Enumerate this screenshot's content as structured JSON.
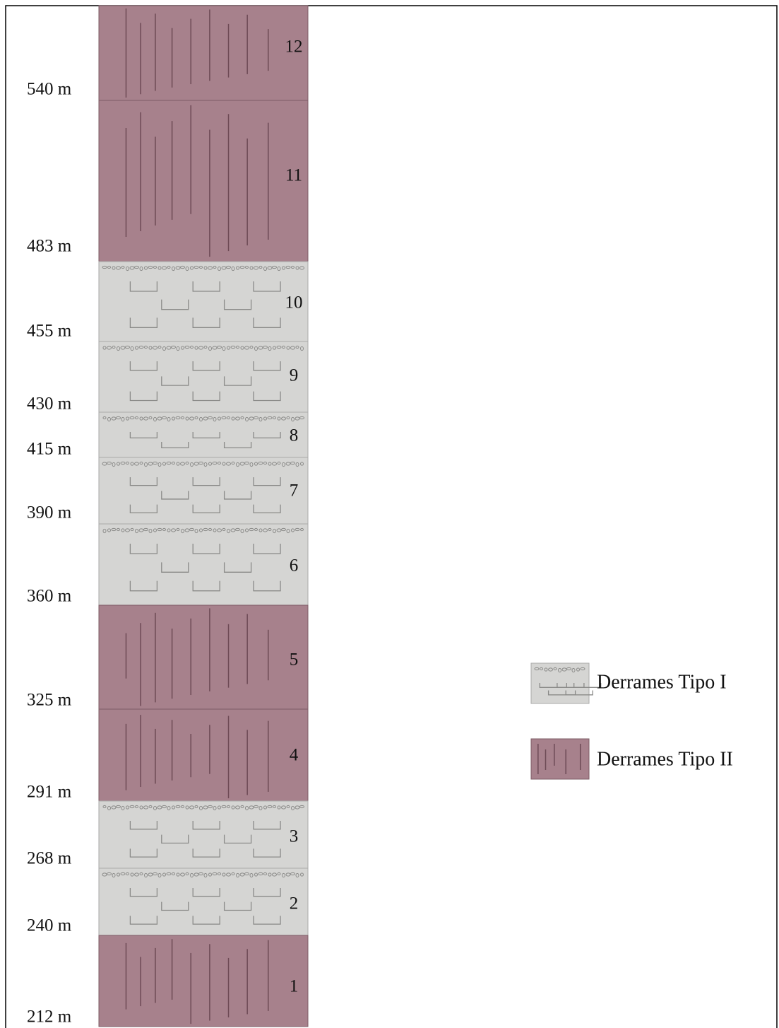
{
  "depth_labels": [
    "540 m",
    "483 m",
    "455 m",
    "430 m",
    "415 m",
    "390 m",
    "360 m",
    "325 m",
    "291 m",
    "268 m",
    "240 m",
    "212 m"
  ],
  "layer_labels": [
    "12",
    "11",
    "10",
    "9",
    "8",
    "7",
    "6",
    "5",
    "4",
    "3",
    "2",
    "1"
  ],
  "legend": [
    {
      "label": "Derrames Tipo I"
    },
    {
      "label": "Derrames Tipo II"
    }
  ]
}
